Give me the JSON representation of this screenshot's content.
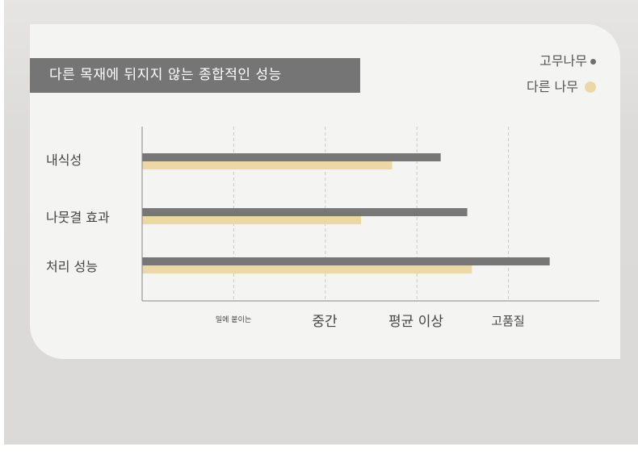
{
  "title": "다른 목재에 뒤지지 않는 종합적인 성능",
  "legend": [
    {
      "name": "고무나무",
      "color": "#777777"
    },
    {
      "name": "다른 나무",
      "color": "#ecd8a6"
    }
  ],
  "chart_data": {
    "type": "bar",
    "orientation": "horizontal",
    "title": "다른 목재에 뒤지지 않는 종합적인 성능",
    "categories": [
      "내식성",
      "나뭇결 효과",
      "처리 성능"
    ],
    "x_ticks": [
      "밀에 붙이는",
      "중간",
      "평균 이상",
      "고품질"
    ],
    "xlim": [
      0,
      5
    ],
    "grid": true,
    "legend_position": "top-right",
    "series": [
      {
        "name": "고무나무",
        "values": [
          3.26,
          3.55,
          4.45
        ]
      },
      {
        "name": "다른 나무",
        "values": [
          2.73,
          2.39,
          3.6
        ]
      }
    ]
  }
}
